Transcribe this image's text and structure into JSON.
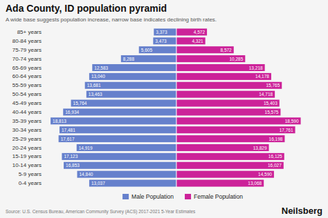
{
  "chart_data": {
    "type": "bar",
    "orientation": "horizontal",
    "title": "Ada County, ID population pyramid",
    "subtitle": "A wide base suggests population increase, narrow base indicates declining birth rates.",
    "categories": [
      "85+ years",
      "80-84 years",
      "75-79 years",
      "70-74 years",
      "65-69 years",
      "60-64 years",
      "55-59 years",
      "50-54 years",
      "45-49 years",
      "40-44 years",
      "35-39 years",
      "30-34 years",
      "25-29 years",
      "20-24 years",
      "15-19 years",
      "10-14 years",
      "5-9 years",
      "0-4 years"
    ],
    "series": [
      {
        "name": "Male Population",
        "color": "#6680CC",
        "values": [
          3373,
          3473,
          5605,
          8288,
          12583,
          13040,
          13681,
          13463,
          15764,
          16934,
          18813,
          17481,
          17617,
          14919,
          17123,
          16853,
          14840,
          13037
        ],
        "value_labels": [
          "3,373",
          "3,473",
          "5,605",
          "8,288",
          "12,583",
          "13,040",
          "13,681",
          "13,463",
          "15,764",
          "16,934",
          "18,813",
          "17,481",
          "17,617",
          "14,919",
          "17,123",
          "16,853",
          "14,840",
          "13,037"
        ]
      },
      {
        "name": "Female Population",
        "color": "#CC2299",
        "values": [
          4572,
          4321,
          8572,
          10285,
          13218,
          14178,
          15765,
          14718,
          15403,
          15575,
          18590,
          17761,
          16198,
          13829,
          16125,
          16027,
          14590,
          13068
        ],
        "value_labels": [
          "4,572",
          "4,321",
          "8,572",
          "10,285",
          "13,218",
          "14,178",
          "15,765",
          "14,718",
          "15,403",
          "15,575",
          "18,590",
          "17,761",
          "16,198",
          "13,829",
          "16,125",
          "16,027",
          "14,590",
          "13,068"
        ]
      }
    ],
    "xlim": [
      -19753.65,
      21634.95
    ],
    "tick_labels": "y",
    "data_labels": true,
    "grid": false,
    "legend": "bottom",
    "annotations": [
      "Source: U.S. Census Bureau, American Community Survey (ACS) 2017-2021 5-Year Estimates",
      "Neilsberg"
    ]
  }
}
